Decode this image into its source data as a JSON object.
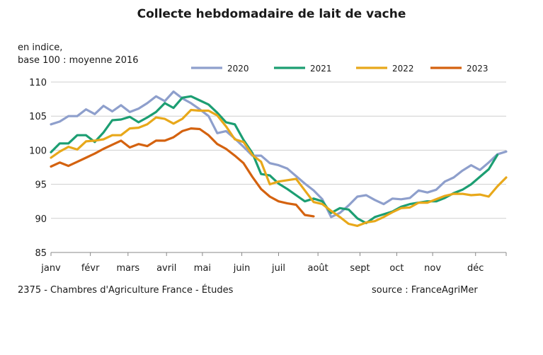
{
  "chart_data": {
    "type": "line",
    "title": "Collecte hebdomadaire de lait de vache",
    "unit_label": [
      "en indice,",
      "base 100 : moyenne 2016"
    ],
    "x_unit": "week",
    "x_range": [
      1,
      53
    ],
    "ylim": [
      85,
      110
    ],
    "y_ticks": [
      85,
      90,
      95,
      100,
      105,
      110
    ],
    "month_labels": [
      {
        "label": "janv",
        "week": 1
      },
      {
        "label": "févr",
        "week": 5.5
      },
      {
        "label": "mars",
        "week": 9.8
      },
      {
        "label": "avril",
        "week": 14.2
      },
      {
        "label": "mai",
        "week": 18.3
      },
      {
        "label": "juin",
        "week": 22.8
      },
      {
        "label": "juil",
        "week": 27
      },
      {
        "label": "août",
        "week": 31.5
      },
      {
        "label": "sept",
        "week": 36.3
      },
      {
        "label": "oct",
        "week": 40.5
      },
      {
        "label": "nov",
        "week": 44.6
      },
      {
        "label": "déc",
        "week": 49.5
      }
    ],
    "grid": "horizontal",
    "legend_position": "top",
    "series": [
      {
        "name": "2020",
        "color": "#8e9fcc",
        "x_start": 1,
        "values": [
          103.8,
          104.2,
          105,
          105,
          106,
          105.3,
          106.5,
          105.7,
          106.6,
          105.6,
          106.1,
          106.9,
          107.9,
          107.2,
          108.6,
          107.6,
          106.9,
          106,
          105,
          102.5,
          102.8,
          101.7,
          100.5,
          99.2,
          99.2,
          98.1,
          97.8,
          97.3,
          96.2,
          95.1,
          94.1,
          92.8,
          90.2,
          90.8,
          91.9,
          93.2,
          93.4,
          92.7,
          92.1,
          92.9,
          92.8,
          93,
          94.1,
          93.8,
          94.2,
          95.4,
          96,
          97,
          97.8,
          97.1,
          98.2,
          99.4,
          99.8
        ]
      },
      {
        "name": "2021",
        "color": "#1c9e72",
        "x_start": 1,
        "values": [
          99.7,
          101,
          101,
          102.2,
          102.2,
          101.2,
          102.6,
          104.4,
          104.5,
          104.9,
          104.1,
          104.8,
          105.6,
          106.9,
          106.2,
          107.7,
          107.9,
          107.3,
          106.7,
          105.5,
          104.1,
          103.8,
          101.5,
          99.6,
          96.5,
          96.3,
          95.1,
          94.3,
          93.4,
          92.5,
          92.9,
          92.5,
          90.8,
          91.5,
          91.3,
          90,
          89.3,
          90.2,
          90.6,
          91,
          91.7,
          92.1,
          92.3,
          92.5,
          92.5,
          93,
          93.7,
          94.2,
          95,
          96.1,
          97.2,
          99.3
        ]
      },
      {
        "name": "2022",
        "color": "#e8a81a",
        "x_start": 1,
        "values": [
          98.9,
          99.8,
          100.5,
          100.1,
          101.3,
          101.4,
          101.6,
          102.2,
          102.2,
          103.2,
          103.3,
          103.8,
          104.8,
          104.6,
          103.9,
          104.6,
          105.9,
          105.8,
          105.8,
          105.1,
          103.5,
          101.6,
          101.2,
          99.3,
          98.3,
          95,
          95.4,
          95.6,
          95.8,
          94.1,
          92.4,
          92.1,
          91.1,
          90.2,
          89.2,
          88.9,
          89.4,
          89.6,
          90.2,
          90.9,
          91.5,
          91.6,
          92.3,
          92.3,
          92.8,
          93.3,
          93.6,
          93.6,
          93.4,
          93.5,
          93.2,
          94.7,
          96
        ]
      },
      {
        "name": "2023",
        "color": "#d4620f",
        "x_start": 1,
        "values": [
          97.6,
          98.2,
          97.7,
          98.3,
          98.9,
          99.5,
          100.2,
          100.8,
          101.4,
          100.4,
          100.9,
          100.6,
          101.4,
          101.4,
          101.9,
          102.8,
          103.2,
          103.1,
          102.2,
          100.9,
          100.2,
          99.2,
          98.1,
          96.1,
          94.3,
          93.2,
          92.5,
          92.2,
          92,
          90.5,
          90.3
        ]
      }
    ],
    "source": "source : FranceAgriMer"
  },
  "footer": {
    "left": "2375 - Chambres d'Agriculture  France - Études",
    "right": "source : FranceAgriMer"
  }
}
